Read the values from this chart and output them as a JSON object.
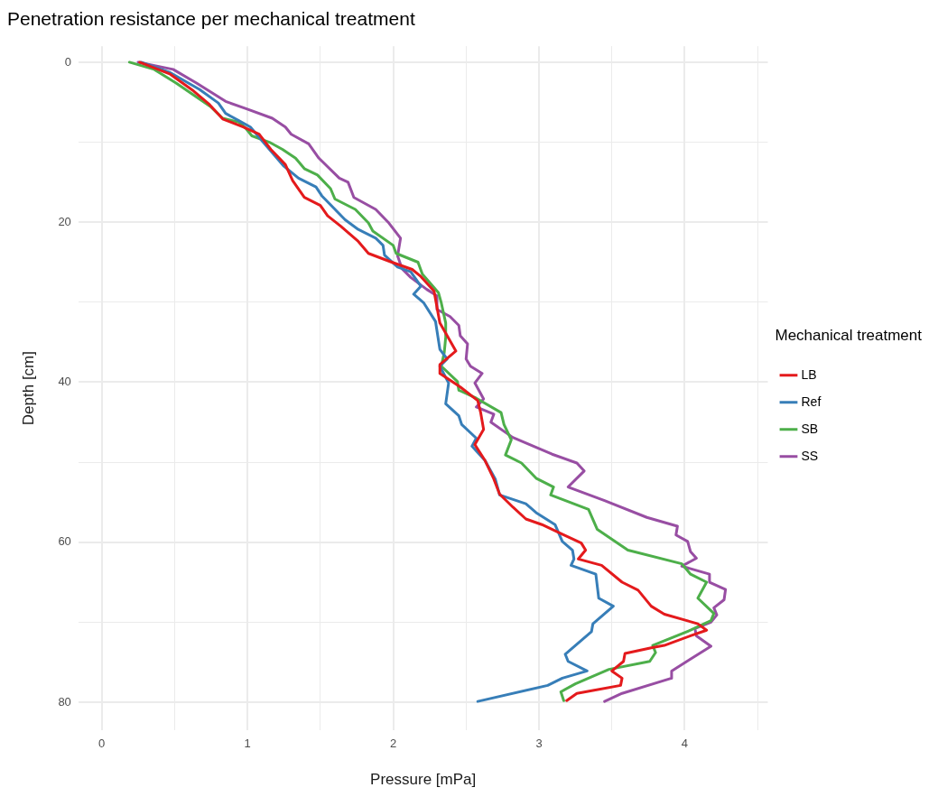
{
  "chart_data": {
    "type": "line",
    "title": "Penetration resistance per mechanical treatment",
    "xlabel": "Pressure [mPa]",
    "ylabel": "Depth [cm]",
    "legend_title": "Mechanical treatment",
    "legend": "right",
    "grid": true,
    "marker": "none",
    "line_style": "solid",
    "xlim": [
      -0.16,
      4.57
    ],
    "ylim": [
      83.5,
      -2
    ],
    "xticks": [
      0,
      {
        "value": 0.5,
        "label": null
      },
      1,
      {
        "value": 1.5,
        "label": null
      },
      2,
      {
        "value": 2.5,
        "label": null
      },
      3,
      {
        "value": 3.5,
        "label": null
      },
      4,
      {
        "value": 4.5,
        "label": null
      }
    ],
    "yticks": [
      0,
      {
        "value": 10,
        "label": null
      },
      20,
      {
        "value": 30,
        "label": null
      },
      40,
      {
        "value": 50,
        "label": null
      },
      60,
      {
        "value": 70,
        "label": null
      },
      80
    ],
    "series": [
      {
        "name": "LB",
        "color": "#e41a1c",
        "x": [
          0.26,
          0.47,
          0.63,
          0.74,
          0.83,
          0.97,
          1.08,
          1.16,
          1.26,
          1.31,
          1.39,
          1.5,
          1.55,
          1.64,
          1.76,
          1.83,
          1.99,
          2.13,
          2.19,
          2.28,
          2.32,
          2.43,
          2.32,
          2.32,
          2.46,
          2.58,
          2.6,
          2.62,
          2.56,
          2.63,
          2.69,
          2.73,
          2.82,
          2.91,
          3.02,
          3.16,
          3.29,
          3.32,
          3.27,
          3.43,
          3.57,
          3.68,
          3.77,
          3.86,
          4.09,
          4.15,
          4.04,
          3.86,
          3.77,
          3.59,
          3.58,
          3.5,
          3.57,
          3.56,
          3.26,
          3.19
        ],
        "values": [
          0,
          1.5,
          3.6,
          5.3,
          7.1,
          8.1,
          9,
          10.9,
          12.8,
          14.8,
          16.9,
          17.9,
          19.2,
          20.5,
          22.4,
          23.9,
          25,
          25.9,
          26.8,
          28.6,
          32.6,
          36.1,
          37.8,
          38.9,
          40.6,
          42.3,
          43.8,
          45.9,
          47.8,
          49.8,
          52.1,
          54,
          55.6,
          57.1,
          57.8,
          59,
          60.1,
          61,
          62.1,
          62.9,
          65,
          66,
          68,
          69,
          70.2,
          71,
          71.7,
          72.9,
          73.2,
          73.9,
          74.9,
          76.1,
          77,
          77.9,
          78.9,
          79.8
        ]
      },
      {
        "name": "Ref",
        "color": "#377eb8",
        "x": [
          0.27,
          0.47,
          0.67,
          0.8,
          0.85,
          0.94,
          1.02,
          1.08,
          1.25,
          1.35,
          1.47,
          1.51,
          1.67,
          1.76,
          1.88,
          1.93,
          1.94,
          2.03,
          2.12,
          2.19,
          2.14,
          2.21,
          2.29,
          2.32,
          2.37,
          2.32,
          2.38,
          2.36,
          2.45,
          2.47,
          2.57,
          2.54,
          2.63,
          2.7,
          2.73,
          2.91,
          2.98,
          3.11,
          3.16,
          3.23,
          3.24,
          3.22,
          3.39,
          3.41,
          3.51,
          3.37,
          3.36,
          3.18,
          3.2,
          3.33,
          3.16,
          3.06,
          2.58
        ],
        "values": [
          0,
          1.3,
          3.4,
          5.1,
          6.4,
          7.3,
          8.1,
          9.4,
          13,
          14.5,
          15.6,
          16.7,
          19.7,
          20.9,
          22,
          22.9,
          24.1,
          25.6,
          26.2,
          28,
          29,
          30.1,
          32.4,
          35.9,
          37.1,
          38,
          40.1,
          42.7,
          44.2,
          45.3,
          47,
          48,
          49.8,
          52.1,
          54.1,
          55.2,
          56.3,
          57.8,
          59.9,
          61,
          62.1,
          62.9,
          64,
          67,
          68,
          70.2,
          71.2,
          74,
          74.9,
          76.1,
          77,
          77.9,
          79.9
        ]
      },
      {
        "name": "SB",
        "color": "#4daf4a",
        "x": [
          0.19,
          0.36,
          0.51,
          0.63,
          0.75,
          0.83,
          0.94,
          0.99,
          1.03,
          1.15,
          1.24,
          1.33,
          1.39,
          1.48,
          1.57,
          1.6,
          1.74,
          1.83,
          1.86,
          2.0,
          2.02,
          2.17,
          2.2,
          2.31,
          2.33,
          2.36,
          2.36,
          2.35,
          2.33,
          2.44,
          2.45,
          2.57,
          2.74,
          2.76,
          2.81,
          2.77,
          2.88,
          2.98,
          3.1,
          3.08,
          3.34,
          3.4,
          3.61,
          3.98,
          4.04,
          4.15,
          4.09,
          4.2,
          4.18,
          4.04,
          3.78,
          3.8,
          3.76,
          3.48,
          3.39,
          3.25,
          3.15,
          3.17
        ],
        "values": [
          0,
          0.9,
          2.6,
          4.1,
          5.6,
          7,
          7.5,
          8.3,
          9.2,
          10,
          10.9,
          12,
          13.3,
          14.1,
          15.8,
          17.1,
          18.4,
          20.1,
          21.1,
          22.9,
          23.9,
          25,
          26.5,
          28.8,
          30.1,
          32.6,
          34.4,
          36.3,
          38,
          39.9,
          41,
          42,
          43.8,
          45.3,
          47.2,
          49.1,
          50.1,
          52,
          53.1,
          54.1,
          55.9,
          58.4,
          61,
          62.7,
          64,
          65,
          67,
          68.9,
          69.8,
          71,
          72.9,
          73.8,
          74.9,
          75.9,
          76.6,
          77.7,
          78.7,
          79.8
        ]
      },
      {
        "name": "SS",
        "color": "#984ea3",
        "x": [
          0.25,
          0.49,
          0.65,
          0.85,
          0.99,
          1.17,
          1.26,
          1.3,
          1.42,
          1.49,
          1.63,
          1.69,
          1.73,
          1.88,
          1.97,
          2.05,
          2.03,
          2.06,
          2.12,
          2.23,
          2.3,
          2.3,
          2.39,
          2.45,
          2.46,
          2.51,
          2.5,
          2.53,
          2.61,
          2.56,
          2.62,
          2.57,
          2.69,
          2.67,
          2.82,
          3.09,
          3.26,
          3.31,
          3.2,
          3.45,
          3.74,
          3.95,
          3.94,
          4.02,
          4.04,
          4.08,
          3.98,
          4.17,
          4.17,
          4.28,
          4.27,
          4.2,
          4.22,
          4.18,
          4.07,
          4.08,
          4.18,
          3.91,
          3.91,
          3.57,
          3.45
        ],
        "values": [
          0,
          0.9,
          2.6,
          4.9,
          5.8,
          7,
          8.1,
          9,
          10.2,
          12,
          14.5,
          15,
          16.9,
          18.4,
          20.1,
          22,
          24.2,
          25.8,
          26.9,
          28.4,
          29.2,
          30.9,
          31.8,
          32.9,
          34.2,
          35.2,
          37.1,
          38,
          38.9,
          40.1,
          42.1,
          43.1,
          44,
          45,
          46.9,
          49,
          50.1,
          51.1,
          53.1,
          54.8,
          56.9,
          58,
          59.1,
          59.9,
          61.2,
          62,
          63,
          64,
          65,
          65.9,
          67.2,
          68.2,
          69.1,
          70,
          70.8,
          71.7,
          73,
          76.1,
          77,
          78.9,
          79.9
        ]
      }
    ]
  }
}
